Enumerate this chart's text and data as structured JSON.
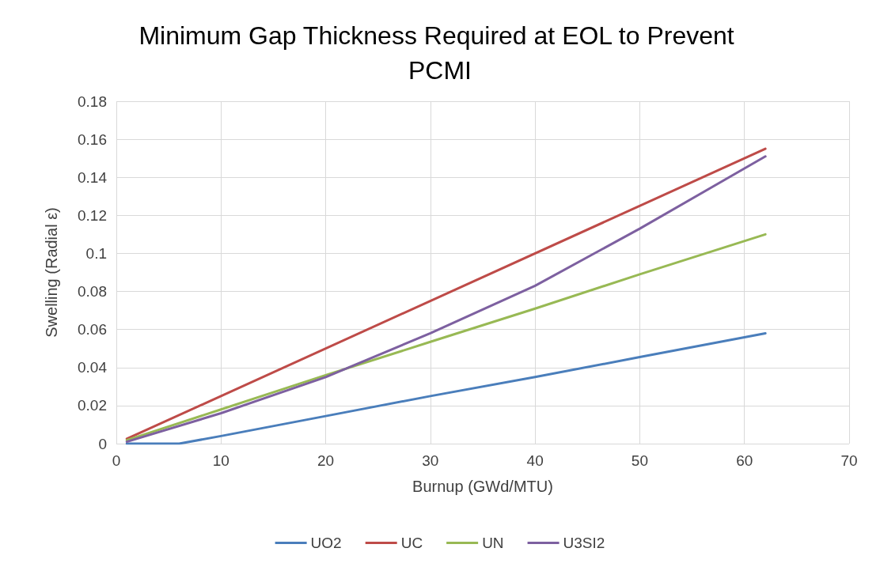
{
  "chart_data": {
    "type": "line",
    "title": "Minimum Gap Thickness Required at EOL to Prevent PCMI",
    "xlabel": "Burnup (GWd/MTU)",
    "ylabel": "Swelling (Radial ε)",
    "series": [
      {
        "name": "UO2",
        "color": "#4a7ebb",
        "x": [
          1,
          6,
          10,
          20,
          30,
          40,
          50,
          62
        ],
        "values": [
          0,
          0,
          0.004,
          0.0145,
          0.025,
          0.035,
          0.0455,
          0.058
        ]
      },
      {
        "name": "UC",
        "color": "#be4b48",
        "x": [
          1,
          62
        ],
        "values": [
          0.0025,
          0.155
        ]
      },
      {
        "name": "UN",
        "color": "#98b954",
        "x": [
          1,
          10,
          20,
          30,
          40,
          50,
          62
        ],
        "values": [
          0.0018,
          0.018,
          0.036,
          0.0535,
          0.071,
          0.089,
          0.11
        ]
      },
      {
        "name": "U3SI2",
        "color": "#7d60a0",
        "x": [
          1,
          10,
          20,
          30,
          40,
          50,
          62
        ],
        "values": [
          0.001,
          0.016,
          0.035,
          0.058,
          0.083,
          0.113,
          0.151
        ]
      }
    ],
    "xlim": [
      0,
      70
    ],
    "xticks": [
      0,
      10,
      20,
      30,
      40,
      50,
      60,
      70
    ],
    "ylim": [
      0,
      0.18
    ],
    "yticks": [
      0,
      0.02,
      0.04,
      0.06,
      0.08,
      0.1,
      0.12,
      0.14,
      0.16,
      0.18
    ],
    "grid": true,
    "legend": "bottom",
    "marker": "none",
    "line_style": "solid"
  }
}
